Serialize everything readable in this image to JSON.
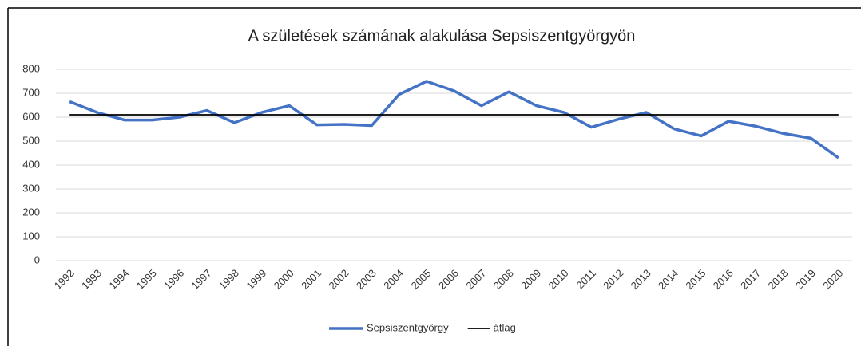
{
  "chart_data": {
    "type": "line",
    "title": "A születések számának alakulása Sepsiszentgyörgyön",
    "categories": [
      "1992",
      "1993",
      "1994",
      "1995",
      "1996",
      "1997",
      "1998",
      "1999",
      "2000",
      "2001",
      "2002",
      "2003",
      "2004",
      "2005",
      "2006",
      "2007",
      "2008",
      "2009",
      "2010",
      "2011",
      "2012",
      "2013",
      "2014",
      "2015",
      "2016",
      "2017",
      "2018",
      "2019",
      "2020"
    ],
    "series": [
      {
        "name": "Sepsiszentgyörgy",
        "color": "#4472c4",
        "values": [
          665,
          620,
          588,
          588,
          600,
          628,
          577,
          620,
          648,
          568,
          570,
          565,
          695,
          750,
          710,
          648,
          706,
          648,
          620,
          558,
          592,
          620,
          552,
          522,
          583,
          562,
          532,
          512,
          430
        ]
      },
      {
        "name": "átlag",
        "color": "#000000",
        "values": [
          610,
          610,
          610,
          610,
          610,
          610,
          610,
          610,
          610,
          610,
          610,
          610,
          610,
          610,
          610,
          610,
          610,
          610,
          610,
          610,
          610,
          610,
          610,
          610,
          610,
          610,
          610,
          610,
          610
        ]
      }
    ],
    "ylim": [
      0,
      800
    ],
    "yticks": [
      0,
      100,
      200,
      300,
      400,
      500,
      600,
      700,
      800
    ],
    "grid": true,
    "legend": "bottom"
  }
}
